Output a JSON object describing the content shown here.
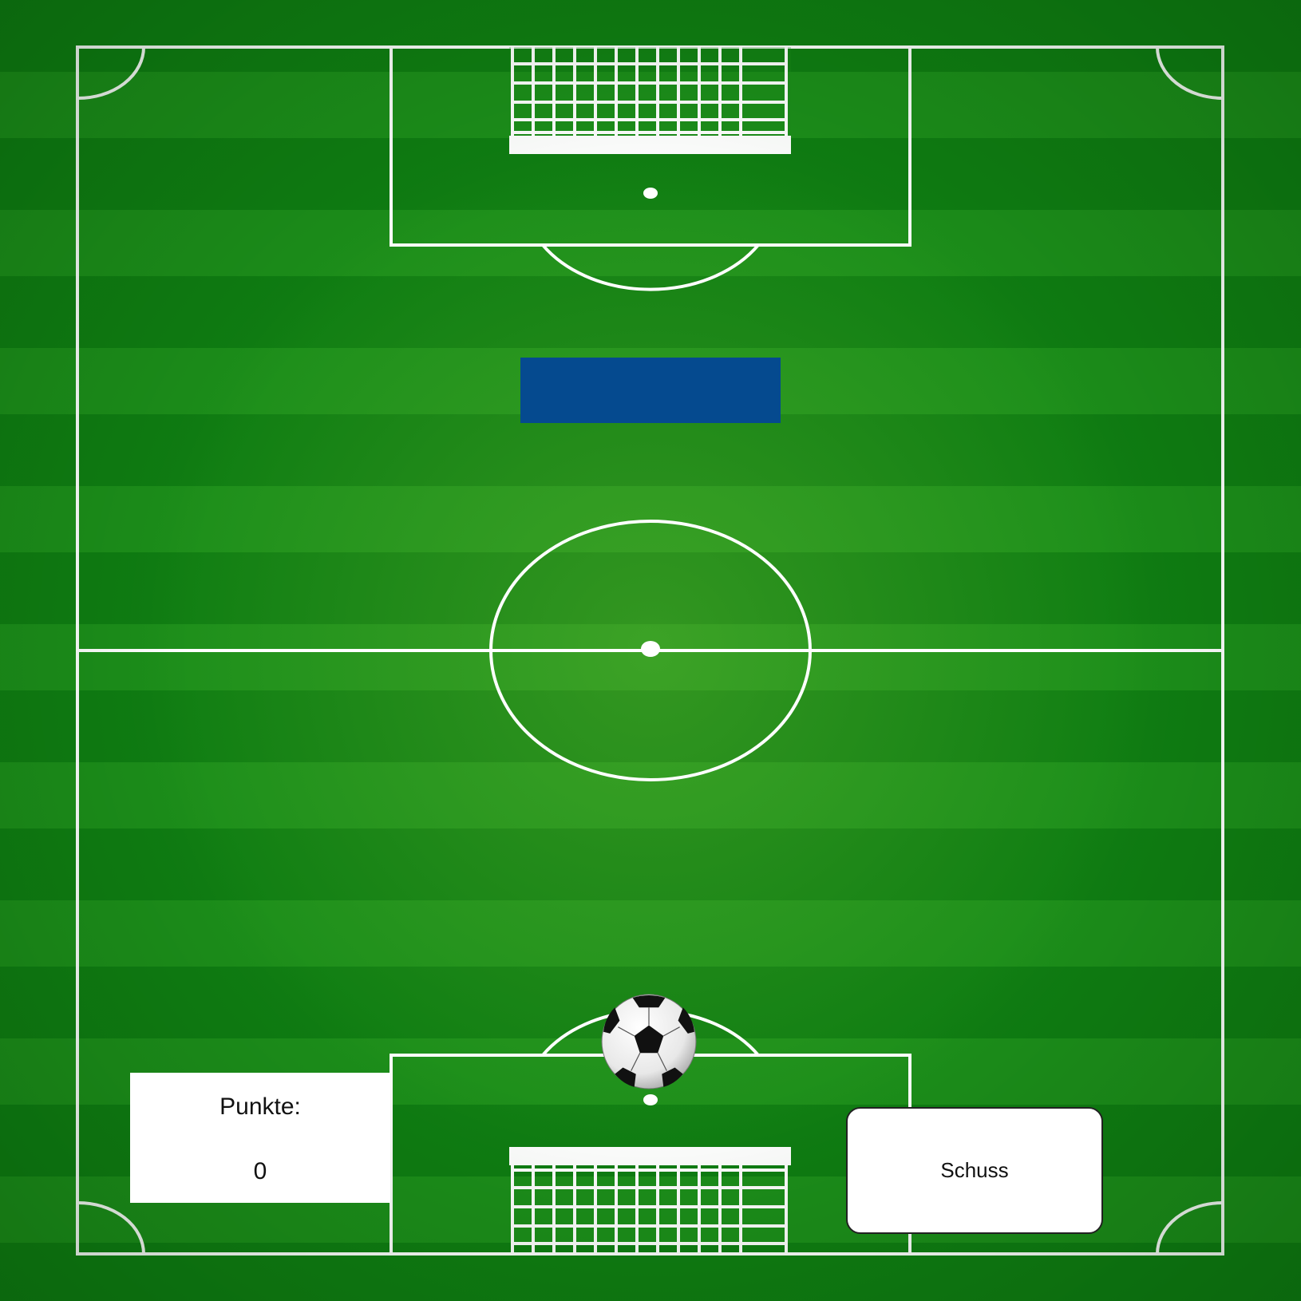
{
  "scoreboard": {
    "label": "Punkte:",
    "value": "0"
  },
  "controls": {
    "shoot_label": "Schuss"
  },
  "field": {
    "grass_color_dark": "#0f7d12",
    "grass_color_light": "#1c8e1a",
    "line_color": "#ffffff"
  },
  "obstacle": {
    "color": "#054a8f"
  },
  "ball": {
    "icon": "soccer-ball-icon"
  }
}
